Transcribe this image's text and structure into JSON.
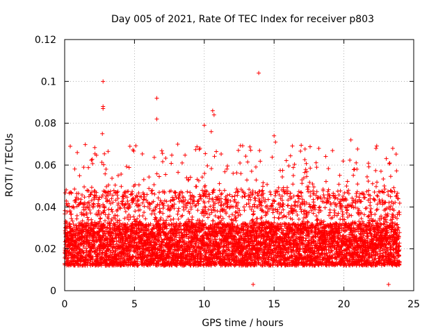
{
  "chart_data": {
    "type": "scatter",
    "title": "Day 005 of 2021, Rate Of TEC Index for receiver p803",
    "xlabel": "GPS time / hours",
    "ylabel": "ROTI / TECUs",
    "xlim": [
      0,
      25
    ],
    "ylim": [
      0,
      0.12
    ],
    "xticks": [
      0,
      5,
      10,
      15,
      20,
      25
    ],
    "xtick_labels": [
      "0",
      "5",
      "10",
      "15",
      "20",
      "25"
    ],
    "yticks": [
      0,
      0.02,
      0.04,
      0.06,
      0.08,
      0.1,
      0.12
    ],
    "ytick_labels": [
      "0",
      "0.02",
      "0.04",
      "0.06",
      "0.08",
      "0.1",
      "0.12"
    ],
    "grid": true,
    "marker": "+",
    "color": "#ff0000",
    "data_x_range": [
      0,
      24
    ],
    "typical_band": [
      0.008,
      0.035
    ],
    "series": [
      {
        "name": "ROTI",
        "notable_points": [
          {
            "x": 2.75,
            "y": 0.1
          },
          {
            "x": 2.75,
            "y": 0.088
          },
          {
            "x": 2.75,
            "y": 0.087
          },
          {
            "x": 2.7,
            "y": 0.075
          },
          {
            "x": 6.6,
            "y": 0.092
          },
          {
            "x": 6.6,
            "y": 0.082
          },
          {
            "x": 10.6,
            "y": 0.086
          },
          {
            "x": 10.7,
            "y": 0.084
          },
          {
            "x": 10.5,
            "y": 0.076
          },
          {
            "x": 13.9,
            "y": 0.104
          },
          {
            "x": 15.0,
            "y": 0.074
          },
          {
            "x": 15.1,
            "y": 0.071
          },
          {
            "x": 10.0,
            "y": 0.079
          },
          {
            "x": 20.5,
            "y": 0.072
          },
          {
            "x": 8.1,
            "y": 0.07
          },
          {
            "x": 22.3,
            "y": 0.068
          },
          {
            "x": 23.5,
            "y": 0.068
          },
          {
            "x": 0.4,
            "y": 0.069
          },
          {
            "x": 18.2,
            "y": 0.068
          },
          {
            "x": 13.5,
            "y": 0.003
          },
          {
            "x": 23.2,
            "y": 0.003
          }
        ]
      }
    ]
  }
}
